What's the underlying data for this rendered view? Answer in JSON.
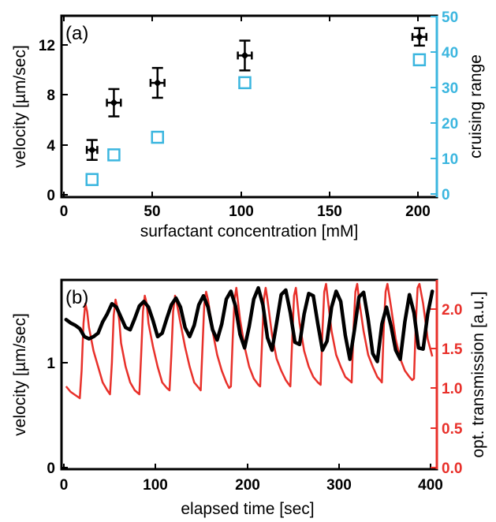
{
  "colors": {
    "black": "#000000",
    "cyan": "#3bb6df",
    "red": "#e8302a"
  },
  "chart_data": [
    {
      "type": "scatter",
      "panel_label": "(a)",
      "xlabel": "surfactant concentration [mM]",
      "ylabel": "velocity [µm/sec]",
      "y2label": "cruising range",
      "xlim": [
        -5,
        210
      ],
      "ylim": [
        -0.4,
        14.2
      ],
      "y2lim": [
        -1.5,
        50
      ],
      "x_ticks": [
        "0",
        "50",
        "100",
        "150",
        "200"
      ],
      "y_ticks": [
        "0",
        "4",
        "8",
        "12"
      ],
      "y2_ticks": [
        "0",
        "10",
        "20",
        "30",
        "40",
        "50"
      ],
      "grid": false,
      "series": [
        {
          "marker": "filled-diamond",
          "color": "#000000",
          "axis": "left",
          "x": [
            12.5,
            25,
            50,
            100,
            200
          ],
          "y": [
            3.4,
            7.2,
            8.8,
            11.0,
            12.5
          ],
          "y_err": [
            0.8,
            1.1,
            1.2,
            1.2,
            0.7
          ],
          "x_err": [
            3,
            4,
            4,
            4,
            4
          ]
        },
        {
          "marker": "open-square",
          "color": "#3bb6df",
          "axis": "right",
          "x": [
            12.5,
            25,
            50,
            100,
            200
          ],
          "y": [
            3.5,
            10.5,
            15.5,
            31,
            37.5
          ]
        }
      ]
    },
    {
      "type": "line",
      "panel_label": "(b)",
      "xlabel": "elapsed time [sec]",
      "ylabel": "velocity [µm/sec]",
      "y2label": "opt. transmission [a.u.]",
      "xlim": [
        -5,
        405
      ],
      "ylim": [
        -0.02,
        1.65
      ],
      "y2lim": [
        -0.05,
        2.35
      ],
      "x_ticks": [
        "0",
        "100",
        "200",
        "300",
        "400"
      ],
      "y_ticks": [
        "0",
        "1"
      ],
      "y2_ticks": [
        "0.0",
        "0.5",
        "1.0",
        "1.5",
        "2.0"
      ],
      "grid": false,
      "series": [
        {
          "color": "#000000",
          "axis": "left",
          "x": [
            0,
            5,
            10,
            15,
            20,
            25,
            30,
            35,
            40,
            45,
            50,
            55,
            60,
            65,
            70,
            75,
            80,
            85,
            90,
            95,
            100,
            105,
            110,
            115,
            120,
            125,
            130,
            135,
            140,
            145,
            150,
            155,
            160,
            165,
            170,
            175,
            180,
            185,
            190,
            195,
            200,
            205,
            210,
            215,
            220,
            225,
            230,
            235,
            240,
            245,
            250,
            255,
            260,
            265,
            270,
            275,
            280,
            285,
            290,
            295,
            300,
            305,
            310,
            315,
            320,
            325,
            330,
            335,
            340,
            345,
            350,
            355,
            360,
            365,
            370,
            375,
            380,
            385,
            390,
            395,
            400
          ],
          "y": [
            1.3,
            1.27,
            1.25,
            1.22,
            1.15,
            1.13,
            1.15,
            1.18,
            1.28,
            1.35,
            1.44,
            1.41,
            1.32,
            1.23,
            1.21,
            1.31,
            1.42,
            1.46,
            1.41,
            1.29,
            1.15,
            1.18,
            1.31,
            1.43,
            1.49,
            1.41,
            1.23,
            1.15,
            1.25,
            1.43,
            1.51,
            1.41,
            1.21,
            1.12,
            1.26,
            1.48,
            1.55,
            1.42,
            1.17,
            1.05,
            1.24,
            1.48,
            1.58,
            1.43,
            1.14,
            1.03,
            1.27,
            1.52,
            1.56,
            1.36,
            1.1,
            1.08,
            1.35,
            1.53,
            1.51,
            1.26,
            1.03,
            1.11,
            1.41,
            1.55,
            1.46,
            1.16,
            0.95,
            1.21,
            1.5,
            1.54,
            1.3,
            1.0,
            0.93,
            1.26,
            1.41,
            1.24,
            1.03,
            0.95,
            1.28,
            1.52,
            1.36,
            1.05,
            1.04,
            1.35,
            1.55
          ]
        },
        {
          "color": "#e8302a",
          "axis": "right",
          "x": [
            0,
            5,
            10,
            15,
            17,
            19,
            21,
            23,
            25,
            30,
            35,
            40,
            45,
            48,
            50,
            52,
            54,
            56,
            58,
            60,
            65,
            70,
            75,
            80,
            82,
            84,
            86,
            88,
            90,
            95,
            100,
            105,
            110,
            113,
            115,
            117,
            119,
            121,
            125,
            130,
            135,
            140,
            145,
            147,
            149,
            151,
            153,
            155,
            160,
            165,
            170,
            175,
            178,
            180,
            182,
            184,
            186,
            190,
            195,
            200,
            205,
            210,
            212,
            214,
            216,
            218,
            220,
            225,
            230,
            235,
            240,
            243,
            245,
            247,
            249,
            251,
            255,
            260,
            265,
            270,
            275,
            278,
            280,
            282,
            284,
            286,
            290,
            295,
            300,
            305,
            310,
            312,
            314,
            316,
            318,
            320,
            325,
            330,
            335,
            340,
            343,
            345,
            347,
            349,
            351,
            355,
            360,
            365,
            370,
            375,
            378,
            380,
            382,
            384,
            386,
            390,
            395,
            400
          ],
          "y": [
            1.0,
            0.93,
            0.89,
            0.85,
            1.2,
            1.8,
            2.05,
            1.95,
            1.75,
            1.45,
            1.25,
            1.05,
            0.95,
            0.9,
            1.3,
            1.9,
            2.1,
            2.0,
            1.85,
            1.55,
            1.25,
            1.05,
            0.95,
            0.9,
            1.4,
            1.95,
            2.15,
            2.05,
            1.8,
            1.5,
            1.25,
            1.05,
            0.98,
            0.95,
            1.4,
            1.95,
            2.15,
            2.05,
            1.8,
            1.5,
            1.25,
            1.05,
            0.98,
            0.95,
            1.5,
            2.05,
            2.2,
            2.1,
            1.7,
            1.4,
            1.2,
            1.05,
            0.98,
            1.0,
            1.6,
            2.1,
            2.25,
            1.85,
            1.5,
            1.25,
            1.1,
            1.02,
            1.0,
            1.55,
            2.1,
            2.25,
            2.1,
            1.65,
            1.35,
            1.2,
            1.08,
            1.03,
            1.0,
            1.6,
            2.15,
            2.25,
            1.8,
            1.45,
            1.25,
            1.12,
            1.05,
            1.02,
            1.7,
            2.2,
            2.3,
            2.1,
            1.7,
            1.4,
            1.25,
            1.12,
            1.07,
            1.05,
            1.75,
            2.2,
            2.3,
            2.1,
            1.7,
            1.4,
            1.25,
            1.12,
            1.08,
            1.05,
            1.75,
            2.2,
            2.3,
            2.0,
            1.6,
            1.35,
            1.2,
            1.12,
            1.08,
            1.1,
            1.8,
            2.25,
            2.3,
            2.05,
            1.6,
            1.38
          ]
        }
      ]
    }
  ]
}
